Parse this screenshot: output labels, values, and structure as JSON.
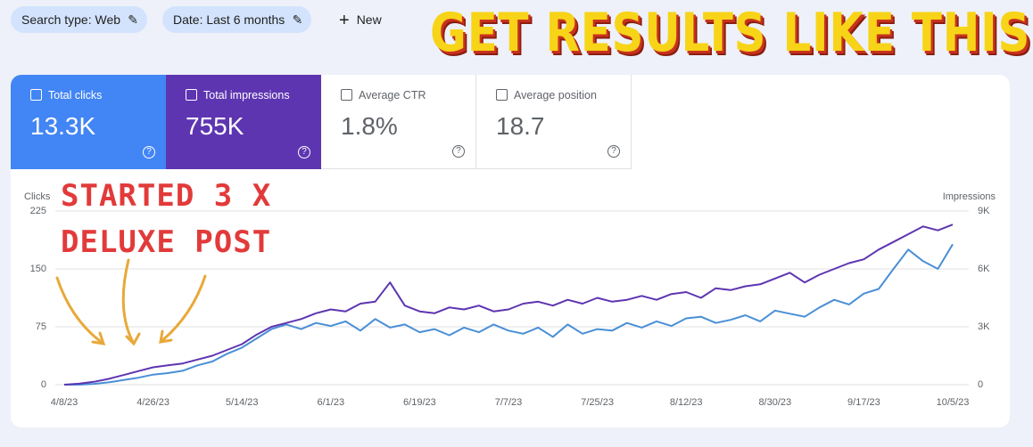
{
  "filters": [
    "Search type: Web",
    "Date: Last 6 months"
  ],
  "new_button": "New",
  "banner": "GET RESULTS LIKE THIS",
  "metrics": [
    {
      "label": "Total clicks",
      "value": "13.3K"
    },
    {
      "label": "Total impressions",
      "value": "755K"
    },
    {
      "label": "Average CTR",
      "value": "1.8%"
    },
    {
      "label": "Average position",
      "value": "18.7"
    }
  ],
  "annotation": [
    "STARTED 3 X",
    "DELUXE POST"
  ],
  "chart_data": {
    "type": "line",
    "ylabel": "Clicks",
    "y2label": "Impressions",
    "categories": [
      "4/8/23",
      null,
      null,
      null,
      null,
      null,
      "4/26/23",
      null,
      null,
      null,
      null,
      null,
      "5/14/23",
      null,
      null,
      null,
      null,
      null,
      "6/1/23",
      null,
      null,
      null,
      null,
      null,
      "6/19/23",
      null,
      null,
      null,
      null,
      null,
      "7/7/23",
      null,
      null,
      null,
      null,
      null,
      "7/25/23",
      null,
      null,
      null,
      null,
      null,
      "8/12/23",
      null,
      null,
      null,
      null,
      null,
      "8/30/23",
      null,
      null,
      null,
      null,
      null,
      "9/17/23",
      null,
      null,
      null,
      null,
      null,
      "10/5/23"
    ],
    "series": [
      {
        "name": "Total clicks",
        "color": "#4a8fd6",
        "axis": "y",
        "values": [
          0,
          0,
          1,
          3,
          6,
          9,
          13,
          15,
          18,
          25,
          30,
          40,
          48,
          60,
          72,
          78,
          72,
          80,
          76,
          82,
          70,
          85,
          74,
          78,
          68,
          72,
          64,
          74,
          68,
          78,
          70,
          66,
          74,
          62,
          78,
          66,
          72,
          70,
          80,
          74,
          82,
          76,
          86,
          88,
          80,
          84,
          90,
          82,
          96,
          92,
          88,
          100,
          110,
          104,
          118,
          124,
          150,
          175,
          160,
          150,
          182
        ]
      },
      {
        "name": "Total impressions",
        "color": "#5e35b1",
        "axis": "y2",
        "values": [
          0,
          50,
          150,
          300,
          500,
          700,
          900,
          1000,
          1100,
          1300,
          1500,
          1800,
          2100,
          2600,
          3000,
          3200,
          3400,
          3700,
          3900,
          3800,
          4200,
          4300,
          5300,
          4100,
          3800,
          3700,
          4000,
          3900,
          4100,
          3800,
          3900,
          4200,
          4300,
          4100,
          4400,
          4200,
          4500,
          4300,
          4400,
          4600,
          4400,
          4700,
          4800,
          4500,
          5000,
          4900,
          5100,
          5200,
          5500,
          5800,
          5300,
          5700,
          6000,
          6300,
          6500,
          7000,
          7400,
          7800,
          8200,
          8000,
          8300
        ]
      }
    ],
    "ylim": [
      0,
      225
    ],
    "yticks": [
      0,
      75,
      150,
      225
    ],
    "y2lim": [
      0,
      9000
    ],
    "y2ticks": [
      0,
      {
        "value": 3000,
        "label": "3K"
      },
      {
        "value": 6000,
        "label": "6K"
      },
      {
        "value": 9000,
        "label": "9K"
      }
    ],
    "grid": true
  }
}
